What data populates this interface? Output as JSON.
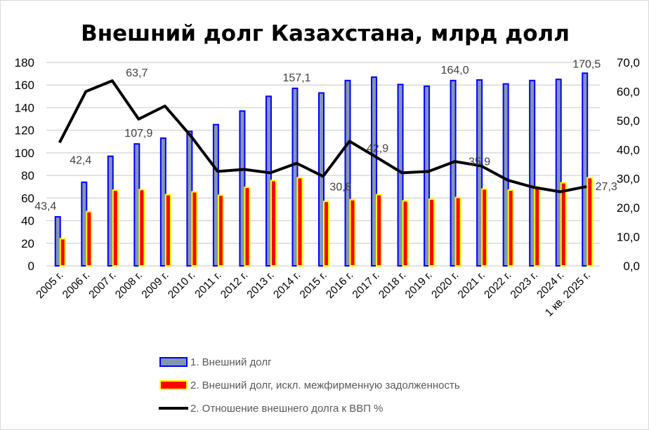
{
  "chart_data": {
    "type": "bar+line",
    "title": "Внешний долг Казахстана, млрд долл",
    "categories": [
      "2005 г.",
      "2006 г.",
      "2007 г.",
      "2008 г.",
      "2009 г.",
      "2010 г.",
      "2011 г.",
      "2012 г.",
      "2013 г.",
      "2014 г.",
      "2015 г.",
      "2016 г.",
      "2017 г.",
      "2018 г.",
      "2019 г.",
      "2020 г.",
      "2021 г.",
      "2022 г.",
      "2023 г.",
      "2024 г.",
      "1 кв. 2025 г."
    ],
    "y_left": {
      "range": [
        0,
        180
      ],
      "ticks": [
        "0",
        "20",
        "40",
        "60",
        "80",
        "100",
        "120",
        "140",
        "160",
        "180"
      ]
    },
    "y_right": {
      "range": [
        0,
        70
      ],
      "ticks": [
        "0,0",
        "10,0",
        "20,0",
        "30,0",
        "40,0",
        "50,0",
        "60,0",
        "70,0"
      ]
    },
    "grid": true,
    "legend_position": "bottom",
    "series": [
      {
        "name": "1. Внешний долг",
        "type": "bar",
        "axis": "left",
        "fill": "#8497b0",
        "stroke": "#0000ff",
        "values": [
          43.4,
          74,
          97,
          107.9,
          113,
          119,
          125,
          137,
          150,
          157.1,
          153,
          164,
          167,
          160.5,
          159,
          164.0,
          164.5,
          161,
          164,
          165,
          170.5
        ]
      },
      {
        "name": "2. Внешний долг, искл. межфирменную задолженность",
        "type": "bar",
        "axis": "left",
        "fill": "#ff0000",
        "stroke": "#ffff00",
        "values": [
          24,
          48,
          67,
          67.5,
          63,
          65.5,
          62.5,
          69.5,
          75.5,
          78,
          57,
          58.5,
          63,
          57.5,
          59,
          60.5,
          68,
          67,
          70,
          73.5,
          78
        ]
      },
      {
        "name": "2. Отношение внешнего долга к ВВП %",
        "type": "line",
        "axis": "right",
        "stroke": "#000000",
        "values": [
          42.4,
          60,
          63.7,
          50.5,
          55,
          44.5,
          32.5,
          33.2,
          32,
          35.3,
          30.8,
          42.9,
          37.5,
          32,
          32.5,
          35.9,
          34.4,
          29.5,
          27,
          25.5,
          27.3
        ]
      }
    ],
    "data_labels": [
      {
        "series": 0,
        "index": 0,
        "text": "43,4"
      },
      {
        "series": 2,
        "index": 0,
        "text": "42,4"
      },
      {
        "series": 2,
        "index": 2,
        "text": "63,7"
      },
      {
        "series": 0,
        "index": 3,
        "text": "107,9"
      },
      {
        "series": 0,
        "index": 9,
        "text": "157,1"
      },
      {
        "series": 2,
        "index": 10,
        "text": "30,8"
      },
      {
        "series": 2,
        "index": 11,
        "text": "42,9"
      },
      {
        "series": 0,
        "index": 15,
        "text": "164,0"
      },
      {
        "series": 2,
        "index": 15,
        "text": "35,9"
      },
      {
        "series": 0,
        "index": 20,
        "text": "170,5"
      },
      {
        "series": 2,
        "index": 20,
        "text": "27,3"
      }
    ]
  }
}
